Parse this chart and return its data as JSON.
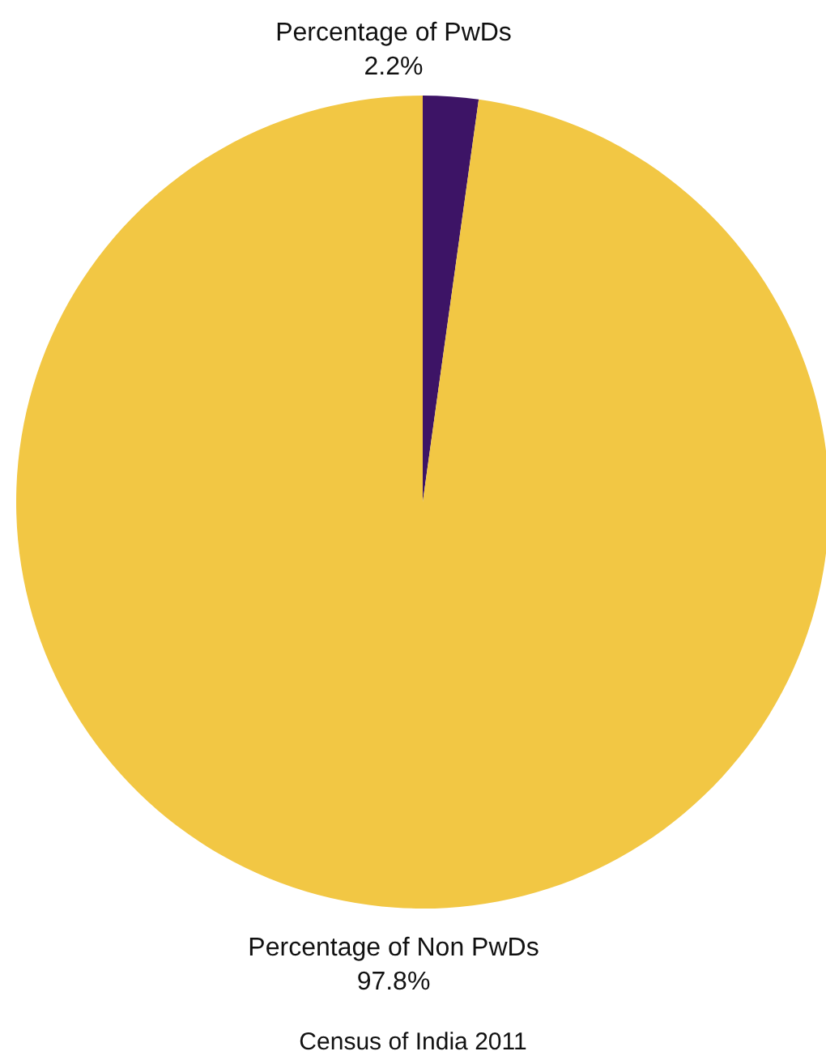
{
  "chart_data": {
    "type": "pie",
    "categories": [
      "Percentage of PwDs",
      "Percentage of Non PwDs"
    ],
    "values": [
      2.2,
      97.8
    ],
    "colors": [
      "#3d1466",
      "#f2c744"
    ],
    "value_labels": [
      "2.2%",
      "97.8%"
    ],
    "annotations": [
      "Census of India 2011"
    ],
    "legend": false
  }
}
